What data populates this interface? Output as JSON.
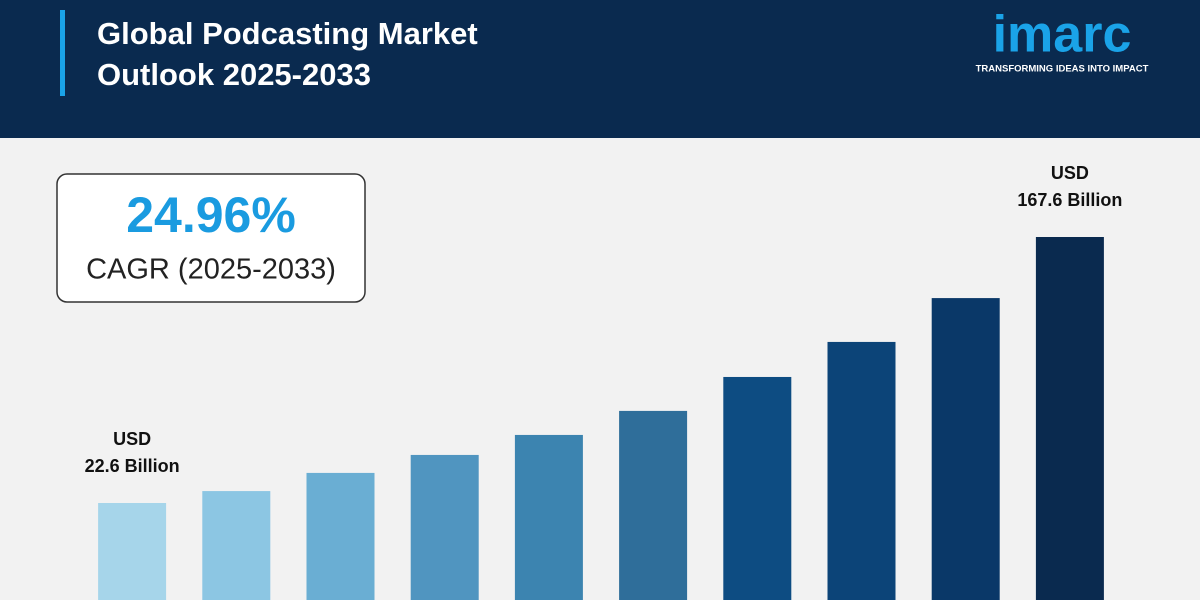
{
  "header": {
    "title_lines": [
      "Global Podcasting Market",
      "Outlook 2025-2033"
    ],
    "logo": "imarc",
    "tagline": "TRANSFORMING IDEAS INTO IMPACT"
  },
  "callout": {
    "value": "24.96%",
    "label": "CAGR (2025-2033)"
  },
  "chart_data": {
    "type": "bar",
    "categories": [
      null,
      null,
      null,
      null,
      null,
      null,
      null,
      null,
      null,
      null
    ],
    "values": [
      22.6,
      29.1,
      39.0,
      48.8,
      59.7,
      72.8,
      91.3,
      110.4,
      134.3,
      167.6
    ],
    "value_labels": [
      [
        "USD",
        "22.6 Billion"
      ],
      null,
      null,
      null,
      null,
      null,
      null,
      null,
      null,
      [
        "USD",
        "167.6 Billion"
      ]
    ],
    "colors": [
      "#a6d5ea",
      "#8cc6e3",
      "#6aaed3",
      "#5095c0",
      "#3c84b0",
      "#2f6e9a",
      "#0d4c82",
      "#0c4478",
      "#0a3868",
      "#0a2a4f"
    ]
  }
}
